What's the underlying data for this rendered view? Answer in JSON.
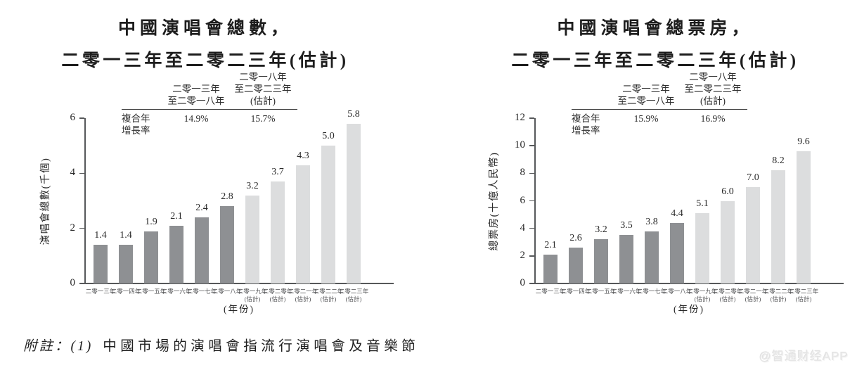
{
  "note": {
    "prefix": "附註：(1)",
    "text": "中國市場的演唱會指流行演唱會及音樂節"
  },
  "watermark": "@智通财经APP",
  "chart_data": [
    {
      "type": "bar",
      "title_line1": "中國演唱會總數，",
      "title_line2": "二零一三年至二零二三年(估計)",
      "cagr_table": {
        "row_label": "複合年\n增長率",
        "col1_header": "二零一三年\n至二零一八年",
        "col2_header": "二零一八年\n至二零二三年\n(估計)",
        "col1_value": "14.9%",
        "col2_value": "15.7%"
      },
      "ylabel": "演唱會總數(千個)",
      "xlabel": "(年份)",
      "ylim": [
        0,
        6
      ],
      "yticks": [
        0,
        2,
        4,
        6
      ],
      "categories": [
        "二零一三年",
        "二零一四年",
        "二零一五年",
        "二零一六年",
        "二零一七年",
        "二零一八年",
        "二零一九年",
        "二零二零年",
        "二零二一年",
        "二零二二年",
        "二零二三年"
      ],
      "estimate_start_index": 6,
      "estimate_suffix": "(估計)",
      "values": [
        1.4,
        1.4,
        1.9,
        2.1,
        2.4,
        2.8,
        3.2,
        3.7,
        4.3,
        5.0,
        5.8
      ],
      "labels": [
        "1.4",
        "1.4",
        "1.9",
        "2.1",
        "2.4",
        "2.8",
        "3.2",
        "3.7",
        "4.3",
        "5.0",
        "5.8"
      ],
      "colors": {
        "actual": "#8e9093",
        "estimate": "#dcddde"
      },
      "legend_position": "none",
      "grid": false
    },
    {
      "type": "bar",
      "title_line1": "中國演唱會總票房，",
      "title_line2": "二零一三年至二零二三年(估計)",
      "cagr_table": {
        "row_label": "複合年\n增長率",
        "col1_header": "二零一三年\n至二零一八年",
        "col2_header": "二零一八年\n至二零二三年\n(估計)",
        "col1_value": "15.9%",
        "col2_value": "16.9%"
      },
      "ylabel": "總票房(十億人民幣)",
      "xlabel": "(年份)",
      "ylim": [
        0,
        12
      ],
      "yticks": [
        0,
        2,
        4,
        6,
        8,
        10,
        12
      ],
      "categories": [
        "二零一三年",
        "二零一四年",
        "二零一五年",
        "二零一六年",
        "二零一七年",
        "二零一八年",
        "二零一九年",
        "二零二零年",
        "二零二一年",
        "二零二二年",
        "二零二三年"
      ],
      "estimate_start_index": 6,
      "estimate_suffix": "(估計)",
      "values": [
        2.1,
        2.6,
        3.2,
        3.5,
        3.8,
        4.4,
        5.1,
        6.0,
        7.0,
        8.2,
        9.6
      ],
      "labels": [
        "2.1",
        "2.6",
        "3.2",
        "3.5",
        "3.8",
        "4.4",
        "5.1",
        "6.0",
        "7.0",
        "8.2",
        "9.6"
      ],
      "colors": {
        "actual": "#8e9093",
        "estimate": "#dcddde"
      },
      "legend_position": "none",
      "grid": false
    }
  ]
}
